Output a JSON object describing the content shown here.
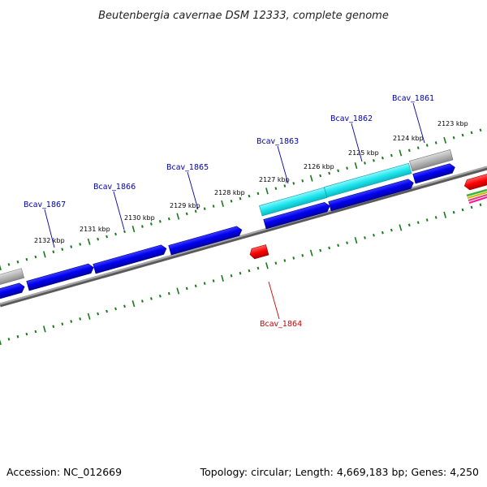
{
  "title": "Beutenbergia cavernae DSM 12333, complete genome",
  "footer": {
    "accession": "Accession: NC_012669",
    "summary": "Topology: circular; Length: 4,669,183 bp; Genes: 4,250"
  },
  "colors": {
    "background": "#ffffff",
    "backbone": "#8c8c8c",
    "tick_ring": "#1a7a1a",
    "gene_forward": "#0000e6",
    "gene_reverse": "#ff0000",
    "gene_highlight": "#1ee6ee",
    "gene_grey": "#b4b4b4",
    "label_blue": "#0000aa",
    "label_red": "#cc0000"
  },
  "scale_ticks": [
    "2123 kbp",
    "2124 kbp",
    "2125 kbp",
    "2126 kbp",
    "2127 kbp",
    "2128 kbp",
    "2129 kbp",
    "2130 kbp",
    "2131 kbp",
    "2132 kbp"
  ],
  "gene_labels": [
    {
      "name": "Bcav_1861",
      "color": "blue"
    },
    {
      "name": "Bcav_1862",
      "color": "blue"
    },
    {
      "name": "Bcav_1863",
      "color": "blue"
    },
    {
      "name": "Bcav_1865",
      "color": "blue"
    },
    {
      "name": "Bcav_1866",
      "color": "blue"
    },
    {
      "name": "Bcav_1867",
      "color": "blue"
    },
    {
      "name": "Bcav_1864",
      "color": "red"
    }
  ]
}
